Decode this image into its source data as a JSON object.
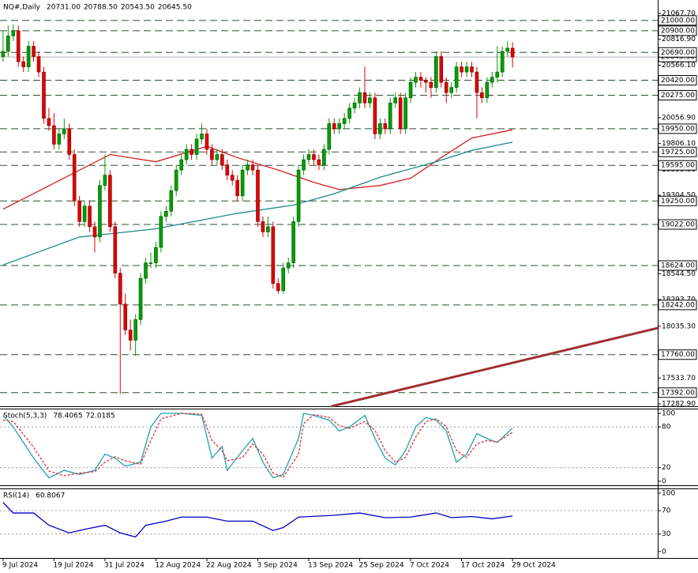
{
  "chart_data": [
    {
      "type": "candlestick",
      "title": "NQ#,Daily",
      "header_values": [
        {
          "value": 20731,
          "label": "20731.00"
        },
        {
          "value": 20788.5,
          "label": "20788.50"
        },
        {
          "value": 20543.5,
          "label": "20543.50"
        },
        {
          "value": 20645.5,
          "label": "20645.50"
        }
      ],
      "xlim": [
        -0.6,
        128.5
      ],
      "ylim": [
        17260,
        21198
      ],
      "yticks": [
        {
          "value": 21067.7,
          "label": "21067.70"
        },
        {
          "value": 20816.9,
          "label": "20816.90"
        },
        {
          "value": 20566.1,
          "label": "20566.10"
        },
        {
          "value": 20056.9,
          "label": "20056.90"
        },
        {
          "value": 19806.1,
          "label": "19806.10"
        },
        {
          "value": 19555.3,
          "label": "19555.30"
        },
        {
          "value": 19304.5,
          "label": "19304.50"
        },
        {
          "value": 18544.5,
          "label": "18544.50"
        },
        {
          "value": 18293.7,
          "label": "18293.70"
        },
        {
          "value": 18035.3,
          "label": "18035.30"
        },
        {
          "value": 17533.7,
          "label": "17533.70"
        },
        {
          "value": 17282.9,
          "label": "17282.90"
        }
      ],
      "last_price": {
        "value": 20645.5,
        "label": "20645.50"
      },
      "levels": [
        {
          "value": 21000,
          "label": "21000.00"
        },
        {
          "value": 20900,
          "label": "20900.00"
        },
        {
          "value": 20690,
          "label": "20690.00"
        },
        {
          "value": 20420,
          "label": "20420.00"
        },
        {
          "value": 20275,
          "label": "20275.00"
        },
        {
          "value": 19950,
          "label": "19950.00"
        },
        {
          "value": 19725,
          "label": "19725.00"
        },
        {
          "value": 19595,
          "label": "19595.00"
        },
        {
          "value": 19250,
          "label": "19250.00"
        },
        {
          "value": 19022,
          "label": "19022.00"
        },
        {
          "value": 18624,
          "label": "18624.00"
        },
        {
          "value": 18242,
          "label": "18242.00"
        },
        {
          "value": 17760,
          "label": "17760.00"
        },
        {
          "value": 17392,
          "label": "17392.00"
        }
      ],
      "up_color": "#00a000",
      "down_color": "#e00000",
      "level_color": "#2f4f2f",
      "candles": [
        [
          20650,
          20900,
          20600,
          20700
        ],
        [
          20700,
          20950,
          20650,
          20850
        ],
        [
          20850,
          20960,
          20800,
          20900
        ],
        [
          20900,
          20950,
          20550,
          20600
        ],
        [
          20600,
          20650,
          20500,
          20550
        ],
        [
          20550,
          20800,
          20500,
          20750
        ],
        [
          20750,
          20800,
          20600,
          20650
        ],
        [
          20650,
          20700,
          20450,
          20500
        ],
        [
          20500,
          20550,
          20000,
          20050
        ],
        [
          20050,
          20150,
          19930,
          19980
        ],
        [
          19980,
          20100,
          19750,
          19800
        ],
        [
          19800,
          19950,
          19750,
          19900
        ],
        [
          19900,
          20050,
          19850,
          19950
        ],
        [
          19950,
          20000,
          19650,
          19700
        ],
        [
          19700,
          19750,
          19200,
          19250
        ],
        [
          19250,
          19300,
          19000,
          19050
        ],
        [
          19050,
          19250,
          19000,
          19200
        ],
        [
          19200,
          19250,
          18950,
          19000
        ],
        [
          19000,
          19050,
          18750,
          18900
        ],
        [
          18900,
          19450,
          18850,
          19400
        ],
        [
          19400,
          19700,
          19350,
          19500
        ],
        [
          19500,
          19550,
          18950,
          19000
        ],
        [
          19000,
          19050,
          18500,
          18550
        ],
        [
          18550,
          18600,
          17380,
          18250
        ],
        [
          18250,
          18350,
          17950,
          18000
        ],
        [
          18000,
          18100,
          17800,
          17900
        ],
        [
          17900,
          18150,
          17750,
          18100
        ],
        [
          18100,
          18550,
          18050,
          18500
        ],
        [
          18500,
          18700,
          18450,
          18650
        ],
        [
          18650,
          18750,
          18600,
          18650
        ],
        [
          18650,
          18850,
          18600,
          18800
        ],
        [
          18800,
          19150,
          18750,
          19100
        ],
        [
          19100,
          19200,
          19050,
          19150
        ],
        [
          19150,
          19400,
          19100,
          19350
        ],
        [
          19350,
          19600,
          19300,
          19550
        ],
        [
          19550,
          19700,
          19500,
          19650
        ],
        [
          19650,
          19800,
          19600,
          19750
        ],
        [
          19750,
          19800,
          19650,
          19700
        ],
        [
          19700,
          19900,
          19650,
          19850
        ],
        [
          19850,
          20000,
          19800,
          19900
        ],
        [
          19900,
          19950,
          19700,
          19750
        ],
        [
          19750,
          19800,
          19600,
          19650
        ],
        [
          19650,
          19750,
          19600,
          19700
        ],
        [
          19700,
          19750,
          19550,
          19600
        ],
        [
          19600,
          19650,
          19450,
          19500
        ],
        [
          19500,
          19550,
          19400,
          19450
        ],
        [
          19450,
          19500,
          19250,
          19300
        ],
        [
          19300,
          19600,
          19250,
          19550
        ],
        [
          19550,
          19650,
          19500,
          19600
        ],
        [
          19600,
          19650,
          19500,
          19550
        ],
        [
          19550,
          19600,
          19000,
          19050
        ],
        [
          19050,
          19100,
          18900,
          18950
        ],
        [
          18950,
          19100,
          18900,
          19000
        ],
        [
          19000,
          19050,
          18400,
          18450
        ],
        [
          18450,
          18500,
          18350,
          18380
        ],
        [
          18380,
          18650,
          18350,
          18600
        ],
        [
          18600,
          18700,
          18550,
          18650
        ],
        [
          18650,
          19100,
          18600,
          19050
        ],
        [
          19050,
          19600,
          19000,
          19550
        ],
        [
          19550,
          19700,
          19500,
          19650
        ],
        [
          19650,
          19750,
          19600,
          19700
        ],
        [
          19700,
          19750,
          19600,
          19650
        ],
        [
          19650,
          19700,
          19550,
          19600
        ],
        [
          19600,
          19800,
          19550,
          19750
        ],
        [
          19750,
          20050,
          19700,
          20000
        ],
        [
          20000,
          20050,
          19900,
          19950
        ],
        [
          19950,
          20050,
          19900,
          20000
        ],
        [
          20000,
          20100,
          19950,
          20050
        ],
        [
          20050,
          20200,
          20000,
          20150
        ],
        [
          20150,
          20250,
          20100,
          20200
        ],
        [
          20200,
          20350,
          20150,
          20300
        ],
        [
          20300,
          20550,
          20150,
          20200
        ],
        [
          20200,
          20300,
          20150,
          20250
        ],
        [
          20250,
          20300,
          19850,
          19900
        ],
        [
          19900,
          20050,
          19850,
          20000
        ],
        [
          20000,
          20050,
          19900,
          19950
        ],
        [
          19950,
          20250,
          19900,
          20200
        ],
        [
          20200,
          20300,
          20150,
          20250
        ],
        [
          20250,
          20300,
          19900,
          19950
        ],
        [
          19950,
          20300,
          19900,
          20250
        ],
        [
          20250,
          20450,
          20200,
          20400
        ],
        [
          20400,
          20500,
          20350,
          20450
        ],
        [
          20450,
          20500,
          20350,
          20420
        ],
        [
          20420,
          20450,
          20300,
          20400
        ],
        [
          20400,
          20450,
          20250,
          20350
        ],
        [
          20350,
          20700,
          20300,
          20650
        ],
        [
          20650,
          20700,
          20350,
          20400
        ],
        [
          20400,
          20450,
          20200,
          20300
        ],
        [
          20300,
          20400,
          20250,
          20350
        ],
        [
          20350,
          20600,
          20300,
          20550
        ],
        [
          20550,
          20600,
          20450,
          20500
        ],
        [
          20500,
          20600,
          20450,
          20550
        ],
        [
          20550,
          20600,
          20450,
          20500
        ],
        [
          20500,
          20550,
          20050,
          20300
        ],
        [
          20300,
          20350,
          20200,
          20250
        ],
        [
          20250,
          20450,
          20200,
          20400
        ],
        [
          20400,
          20500,
          20350,
          20450
        ],
        [
          20450,
          20750,
          20400,
          20500
        ],
        [
          20500,
          20750,
          20450,
          20700
        ],
        [
          20700,
          20800,
          20650,
          20731
        ],
        [
          20731,
          20788.5,
          20543.5,
          20645.5
        ]
      ],
      "series": [
        {
          "color": "#d02020",
          "x": [
            0,
            21,
            30,
            40,
            46,
            54,
            61,
            66,
            74,
            80,
            86,
            92,
            100
          ],
          "values": [
            19170,
            19700,
            19630,
            19780,
            19670,
            19550,
            19430,
            19360,
            19400,
            19470,
            19670,
            19860,
            19940
          ]
        },
        {
          "color": "#1a8a8a",
          "x": [
            0,
            15,
            30,
            46,
            57,
            65,
            74,
            85,
            92,
            100
          ],
          "values": [
            18630,
            18900,
            18980,
            19130,
            19210,
            19320,
            19480,
            19630,
            19740,
            19820
          ]
        }
      ],
      "trendline": {
        "color": "#a03030",
        "x": [
          64.5,
          128.5
        ],
        "y": [
          17260,
          18018
        ]
      }
    },
    {
      "type": "line",
      "title": "Stoch(5,3,3)",
      "header_values": [
        78.4065,
        72.0185
      ],
      "xlim": [
        -0.6,
        128.5
      ],
      "ylim": [
        -6,
        107
      ],
      "yticks": [
        0,
        20,
        80,
        100
      ],
      "levels": [
        20,
        80
      ],
      "x": [
        0,
        2,
        6,
        9,
        12,
        15,
        18,
        20,
        22,
        24,
        27,
        29,
        31,
        35,
        39,
        41,
        43,
        44,
        47,
        49,
        51,
        53,
        55,
        58,
        59,
        61,
        64,
        66,
        68,
        71,
        73,
        75,
        77,
        79,
        81,
        83,
        85,
        87,
        89,
        91,
        93,
        95,
        97,
        100
      ],
      "series": [
        {
          "color": "#20a0b0",
          "dashed": false,
          "values": [
            97,
            80,
            34,
            5,
            16,
            10,
            16,
            40,
            34,
            22,
            28,
            80,
            100,
            100,
            97,
            34,
            51,
            16,
            45,
            63,
            28,
            5,
            10,
            63,
            100,
            97,
            90,
            74,
            80,
            97,
            63,
            34,
            24,
            45,
            80,
            94,
            90,
            74,
            28,
            40,
            70,
            63,
            57,
            78.4065
          ]
        },
        {
          "color": "#e03030",
          "dashed": true,
          "values": [
            90,
            88,
            50,
            15,
            8,
            12,
            14,
            28,
            36,
            30,
            25,
            60,
            92,
            100,
            99,
            60,
            45,
            30,
            35,
            55,
            40,
            12,
            6,
            40,
            85,
            98,
            94,
            82,
            78,
            88,
            75,
            45,
            28,
            35,
            65,
            88,
            92,
            80,
            45,
            35,
            55,
            60,
            58,
            72.0185
          ]
        }
      ]
    },
    {
      "type": "line",
      "title": "RSI(14)",
      "header_values": [
        60.8067
      ],
      "xlim": [
        -0.6,
        128.5
      ],
      "ylim": [
        -11,
        108
      ],
      "yticks": [
        0,
        30,
        70,
        100
      ],
      "levels": [
        30,
        70
      ],
      "x": [
        0,
        2,
        6,
        9,
        13,
        16,
        20,
        23,
        26,
        28,
        32,
        35,
        40,
        44,
        49,
        53,
        55,
        58,
        65,
        70,
        75,
        80,
        85,
        88,
        92,
        96,
        100
      ],
      "series": [
        {
          "color": "#0000c8",
          "dashed": false,
          "values": [
            84,
            66,
            66,
            45,
            32,
            38,
            45,
            32,
            25,
            45,
            52,
            59,
            59,
            52,
            52,
            36,
            41,
            59,
            62,
            66,
            58,
            59,
            66,
            58,
            60,
            56,
            60.8067
          ]
        }
      ],
      "xticks": [
        {
          "value": 0,
          "label": "9 Jul 2024"
        },
        {
          "value": 10,
          "label": "19 Jul 2024"
        },
        {
          "value": 20,
          "label": "31 Jul 2024"
        },
        {
          "value": 30,
          "label": "12 Aug 2024"
        },
        {
          "value": 40,
          "label": "22 Aug 2024"
        },
        {
          "value": 50,
          "label": "3 Sep 2024"
        },
        {
          "value": 60,
          "label": "13 Sep 2024"
        },
        {
          "value": 70,
          "label": "25 Sep 2024"
        },
        {
          "value": 80,
          "label": "7 Oct 2024"
        },
        {
          "value": 90,
          "label": "17 Oct 2024"
        },
        {
          "value": 100,
          "label": "29 Oct 2024"
        }
      ]
    }
  ]
}
